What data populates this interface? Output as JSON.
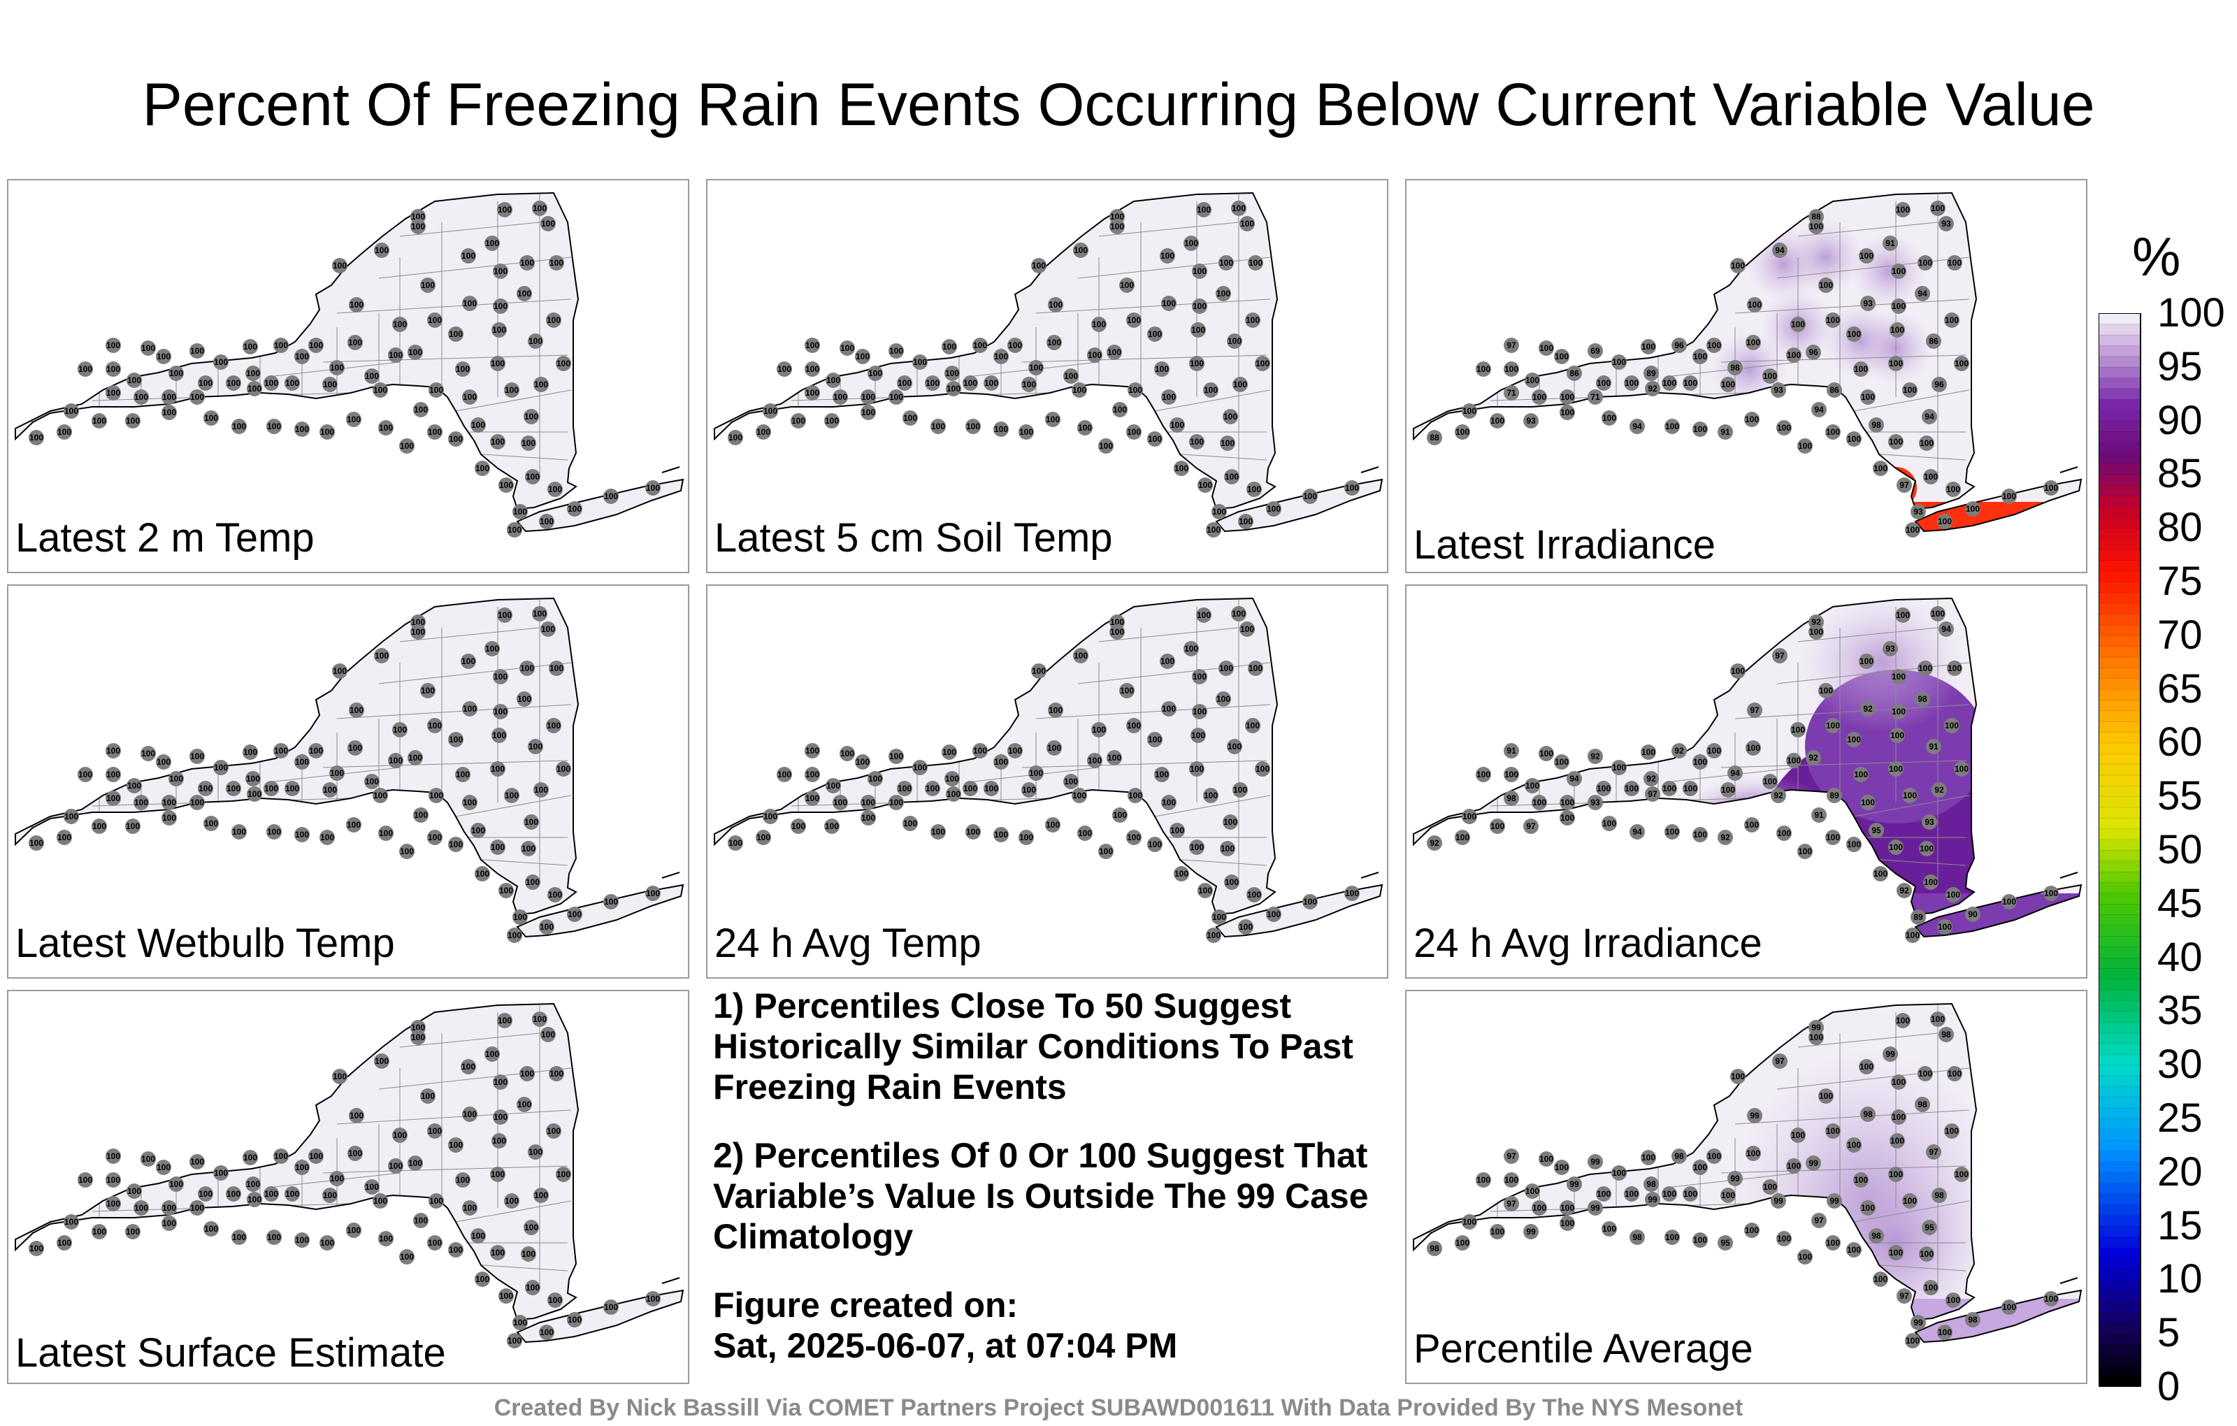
{
  "title": "Percent Of Freezing Rain Events Occurring Below Current Variable Value",
  "panels": [
    {
      "label": "Latest 2 m Temp",
      "mode": "all100",
      "value": "100"
    },
    {
      "label": "Latest 5 cm Soil Temp",
      "mode": "all100",
      "value": "100"
    },
    {
      "label": "Latest Irradiance",
      "mode": "irr",
      "value": "100",
      "extra_values": [
        "88",
        "93",
        "94",
        "91",
        "94",
        "93",
        "100",
        "98",
        "96",
        "86",
        "96",
        "86",
        "98",
        "94",
        "97",
        "93",
        "100",
        "97",
        "69",
        "96",
        "89",
        "86",
        "92",
        "71",
        "71"
      ]
    },
    {
      "label": "Latest Wetbulb Temp",
      "mode": "all100",
      "value": "100"
    },
    {
      "label": "24 h Avg Temp",
      "mode": "all100",
      "value": "100"
    },
    {
      "label": "24 h Avg Irradiance",
      "mode": "avgirr",
      "value": "100",
      "extra_values": [
        "92",
        "94",
        "97",
        "93",
        "98",
        "92",
        "97",
        "94",
        "92",
        "91",
        "92",
        "89",
        "95",
        "93",
        "92",
        "89",
        "90",
        "91",
        "92",
        "92"
      ]
    },
    {
      "label": "Latest Surface Estimate",
      "mode": "all100",
      "value": "100"
    },
    {
      "label": "Percentile Average",
      "mode": "avg",
      "value": "100",
      "extra_values": [
        "99",
        "98",
        "97",
        "99",
        "98",
        "98",
        "99",
        "99",
        "99",
        "97",
        "98",
        "99",
        "98",
        "95",
        "97"
      ]
    }
  ],
  "notes": {
    "note1": "1) Percentiles Close To 50 Suggest Historically Similar Conditions To Past Freezing Rain Events",
    "note2": "2) Percentiles Of 0 Or 100 Suggest That Variable’s Value Is Outside The 99 Case Climatology",
    "created_label": "Figure created on:",
    "created_date": "Sat, 2025-06-07, at 07:04 PM"
  },
  "colorbar": {
    "unit": "%",
    "ticks": [
      "100",
      "95",
      "90",
      "85",
      "80",
      "75",
      "70",
      "65",
      "60",
      "55",
      "50",
      "45",
      "40",
      "35",
      "30",
      "25",
      "20",
      "15",
      "10",
      "5",
      "0"
    ]
  },
  "credit": "Created By Nick Bassill Via COMET Partners Project SUBAWD001611 With Data Provided By The NYS Mesonet",
  "colors": {
    "background": "#f2eef6",
    "marker": "#7d7d7d",
    "purple_light": "#d7c3e6",
    "purple_dark": "#6a1f9a",
    "red": "#ff3010"
  }
}
